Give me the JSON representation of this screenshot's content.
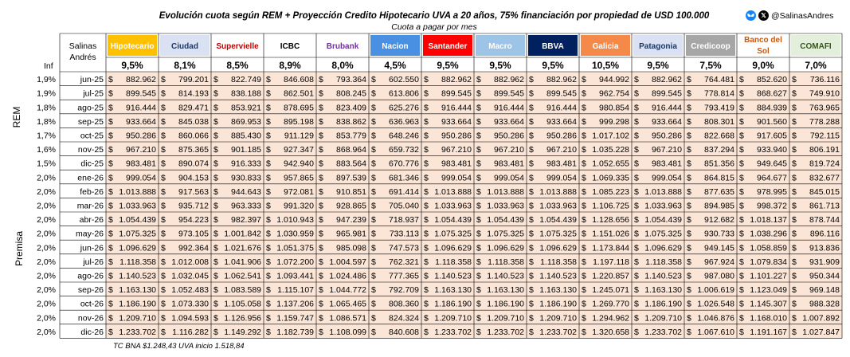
{
  "title": "Evolución cuota según REM + Proyección Credito Hipotecario UVA a 20 años, 75% financiación por propiedad de USD 100.000",
  "subtitle": "Cuota a pagar por mes",
  "social": {
    "handle": "@SalinasAndres",
    "icons": [
      "bluesky-icon",
      "x-icon"
    ]
  },
  "footnote": "TC BNA $1.248,43  UVA inicio 1.518,84",
  "side_labels": {
    "rem": "REM",
    "premisa": "Premisa"
  },
  "chart_data": {
    "type": "table",
    "corner_label": "Salinas Andrés",
    "inf_header": "Inf",
    "currency_symbol": "$",
    "banks": [
      {
        "name": "Hipotecario",
        "rate": "9,5%",
        "bg": "#FFC000",
        "fg": "#FFFFFF"
      },
      {
        "name": "Ciudad",
        "rate": "8,1%",
        "bg": "#D9E1F2",
        "fg": "#1F3864"
      },
      {
        "name": "Supervielle",
        "rate": "8,5%",
        "bg": "#FFFFFF",
        "fg": "#C00000"
      },
      {
        "name": "ICBC",
        "rate": "8,9%",
        "bg": "#FFFFFF",
        "fg": "#000000"
      },
      {
        "name": "Brubank",
        "rate": "8,0%",
        "bg": "#FFFFFF",
        "fg": "#7030A0"
      },
      {
        "name": "Nacion",
        "rate": "4,5%",
        "bg": "#4A90E2",
        "fg": "#FFFFFF"
      },
      {
        "name": "Santander",
        "rate": "9,5%",
        "bg": "#FF0000",
        "fg": "#FFFFFF"
      },
      {
        "name": "Macro",
        "rate": "9,5%",
        "bg": "#9DC3E6",
        "fg": "#FFFFFF"
      },
      {
        "name": "BBVA",
        "rate": "9,5%",
        "bg": "#002060",
        "fg": "#FFFFFF"
      },
      {
        "name": "Galicia",
        "rate": "10,5%",
        "bg": "#F4894A",
        "fg": "#FFFFFF"
      },
      {
        "name": "Patagonia",
        "rate": "9,5%",
        "bg": "#D9E1F2",
        "fg": "#1F3864"
      },
      {
        "name": "Credicoop",
        "rate": "7,5%",
        "bg": "#A6A6A6",
        "fg": "#FFFFFF"
      },
      {
        "name": "Banco del Sol",
        "rate": "9,0%",
        "bg": "#FFFFFF",
        "fg": "#C65911"
      },
      {
        "name": "COMAFI",
        "rate": "7,0%",
        "bg": "#E2EFDA",
        "fg": "#375623"
      }
    ],
    "rows": [
      {
        "inf": "1,9%",
        "month": "jun-25",
        "values": [
          "882.962",
          "799.201",
          "822.749",
          "846.608",
          "793.364",
          "602.550",
          "882.962",
          "882.962",
          "882.962",
          "944.992",
          "882.962",
          "764.481",
          "852.620",
          "736.116"
        ]
      },
      {
        "inf": "1,9%",
        "month": "jul-25",
        "values": [
          "899.545",
          "814.193",
          "838.188",
          "862.501",
          "808.245",
          "613.806",
          "899.545",
          "899.545",
          "899.545",
          "962.754",
          "899.545",
          "778.814",
          "868.627",
          "749.910"
        ]
      },
      {
        "inf": "1,8%",
        "month": "ago-25",
        "values": [
          "916.444",
          "829.471",
          "853.921",
          "878.695",
          "823.409",
          "625.276",
          "916.444",
          "916.444",
          "916.444",
          "980.854",
          "916.444",
          "793.419",
          "884.939",
          "763.965"
        ]
      },
      {
        "inf": "1,8%",
        "month": "sep-25",
        "values": [
          "933.664",
          "845.038",
          "869.953",
          "895.198",
          "838.862",
          "636.963",
          "933.664",
          "933.664",
          "933.664",
          "999.298",
          "933.664",
          "808.301",
          "901.560",
          "778.288"
        ]
      },
      {
        "inf": "1,7%",
        "month": "oct-25",
        "values": [
          "950.286",
          "860.066",
          "885.430",
          "911.129",
          "853.779",
          "648.246",
          "950.286",
          "950.286",
          "950.286",
          "1.017.102",
          "950.286",
          "822.668",
          "917.605",
          "792.115"
        ]
      },
      {
        "inf": "1,6%",
        "month": "nov-25",
        "values": [
          "967.210",
          "875.365",
          "901.185",
          "927.347",
          "868.964",
          "659.732",
          "967.210",
          "967.210",
          "967.210",
          "1.035.228",
          "967.210",
          "837.294",
          "933.940",
          "806.191"
        ]
      },
      {
        "inf": "1,5%",
        "month": "dic-25",
        "values": [
          "983.481",
          "890.074",
          "916.333",
          "942.940",
          "883.564",
          "670.776",
          "983.481",
          "983.481",
          "983.481",
          "1.052.655",
          "983.481",
          "851.356",
          "949.645",
          "819.724"
        ]
      },
      {
        "inf": "2,0%",
        "month": "ene-26",
        "values": [
          "999.054",
          "904.153",
          "930.833",
          "957.865",
          "897.539",
          "681.346",
          "999.054",
          "999.054",
          "999.054",
          "1.069.335",
          "999.054",
          "864.815",
          "964.677",
          "832.677"
        ]
      },
      {
        "inf": "2,0%",
        "month": "feb-26",
        "values": [
          "1.013.888",
          "917.563",
          "944.643",
          "972.081",
          "910.851",
          "691.414",
          "1.013.888",
          "1.013.888",
          "1.013.888",
          "1.085.223",
          "1.013.888",
          "877.635",
          "978.995",
          "845.015"
        ]
      },
      {
        "inf": "2,0%",
        "month": "mar-26",
        "values": [
          "1.033.963",
          "935.712",
          "963.333",
          "991.320",
          "928.865",
          "705.040",
          "1.033.963",
          "1.033.963",
          "1.033.963",
          "1.106.725",
          "1.033.963",
          "894.985",
          "998.372",
          "861.713"
        ]
      },
      {
        "inf": "2,0%",
        "month": "abr-26",
        "values": [
          "1.054.439",
          "954.223",
          "982.397",
          "1.010.943",
          "947.239",
          "718.937",
          "1.054.439",
          "1.054.439",
          "1.054.439",
          "1.128.656",
          "1.054.439",
          "912.682",
          "1.018.137",
          "878.744"
        ]
      },
      {
        "inf": "2,0%",
        "month": "may-26",
        "values": [
          "1.075.325",
          "973.105",
          "1.001.842",
          "1.030.959",
          "965.981",
          "733.113",
          "1.075.325",
          "1.075.325",
          "1.075.325",
          "1.151.026",
          "1.075.325",
          "930.733",
          "1.038.296",
          "896.116"
        ]
      },
      {
        "inf": "2,0%",
        "month": "jun-26",
        "values": [
          "1.096.629",
          "992.364",
          "1.021.676",
          "1.051.375",
          "985.098",
          "747.573",
          "1.096.629",
          "1.096.629",
          "1.096.629",
          "1.173.844",
          "1.096.629",
          "949.145",
          "1.058.859",
          "913.836"
        ]
      },
      {
        "inf": "2,0%",
        "month": "jul-26",
        "values": [
          "1.118.358",
          "1.012.008",
          "1.041.906",
          "1.072.200",
          "1.004.597",
          "762.321",
          "1.118.358",
          "1.118.358",
          "1.118.358",
          "1.197.118",
          "1.118.358",
          "967.924",
          "1.079.834",
          "931.909"
        ]
      },
      {
        "inf": "2,0%",
        "month": "ago-26",
        "values": [
          "1.140.523",
          "1.032.045",
          "1.062.541",
          "1.093.441",
          "1.024.486",
          "777.365",
          "1.140.523",
          "1.140.523",
          "1.140.523",
          "1.220.857",
          "1.140.523",
          "987.080",
          "1.101.227",
          "950.344"
        ]
      },
      {
        "inf": "2,0%",
        "month": "sep-26",
        "values": [
          "1.163.130",
          "1.052.483",
          "1.083.589",
          "1.115.107",
          "1.044.772",
          "792.709",
          "1.163.130",
          "1.163.130",
          "1.163.130",
          "1.245.071",
          "1.163.130",
          "1.006.619",
          "1.123.049",
          "969.148"
        ]
      },
      {
        "inf": "2,0%",
        "month": "oct-26",
        "values": [
          "1.186.190",
          "1.073.330",
          "1.105.058",
          "1.137.206",
          "1.065.465",
          "808.360",
          "1.186.190",
          "1.186.190",
          "1.186.190",
          "1.269.770",
          "1.186.190",
          "1.026.548",
          "1.145.307",
          "988.328"
        ]
      },
      {
        "inf": "2,0%",
        "month": "nov-26",
        "values": [
          "1.209.710",
          "1.094.593",
          "1.126.956",
          "1.159.747",
          "1.086.571",
          "824.324",
          "1.209.710",
          "1.209.710",
          "1.209.710",
          "1.294.962",
          "1.209.710",
          "1.046.876",
          "1.168.010",
          "1.007.892"
        ]
      },
      {
        "inf": "2,0%",
        "month": "dic-26",
        "values": [
          "1.233.702",
          "1.116.282",
          "1.149.292",
          "1.182.739",
          "1.108.099",
          "840.608",
          "1.233.702",
          "1.233.702",
          "1.233.702",
          "1.320.658",
          "1.233.702",
          "1.067.610",
          "1.191.167",
          "1.027.847"
        ]
      }
    ]
  }
}
